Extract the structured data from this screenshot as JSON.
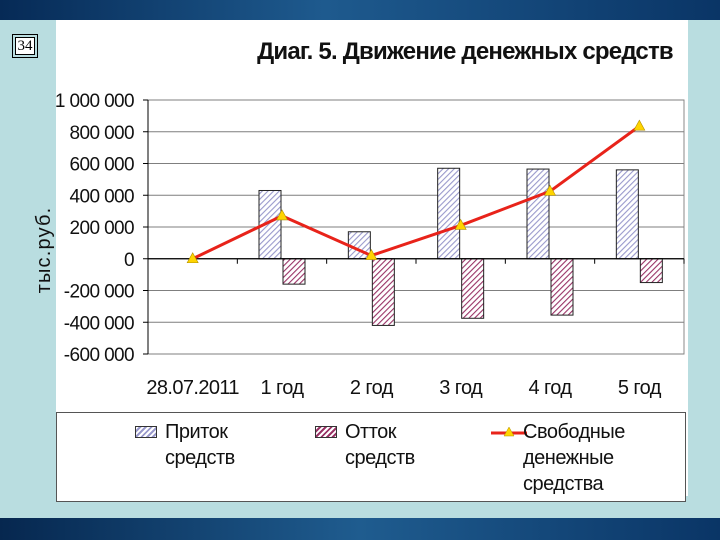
{
  "slide_number": "34",
  "chart_data": {
    "type": "bar",
    "title": "Диаг. 5. Движение денежных средств",
    "ylabel": "тыс.руб.",
    "xlabel": "",
    "categories": [
      "28.07.2011",
      "1 год",
      "2 год",
      "3 год",
      "4 год",
      "5 год"
    ],
    "ylim": [
      -600000,
      1000000
    ],
    "yticks": [
      1000000,
      800000,
      600000,
      400000,
      200000,
      0,
      -200000,
      -400000,
      -600000
    ],
    "ytick_labels": [
      "1 000 000",
      "800 000",
      "600 000",
      "400 000",
      "200 000",
      "0",
      "-200 000",
      "-400 000",
      "-600 000"
    ],
    "grid": true,
    "legend_position": "bottom",
    "series": [
      {
        "name": "Приток средств",
        "kind": "bar",
        "color": "#9999cc",
        "values": [
          0,
          430000,
          170000,
          570000,
          565000,
          560000
        ]
      },
      {
        "name": "Отток средств",
        "kind": "bar",
        "color": "#993366",
        "values": [
          0,
          -160000,
          -420000,
          -375000,
          -355000,
          -150000
        ]
      },
      {
        "name": "Свободные денежные средства",
        "kind": "line",
        "color": "#e8231a",
        "marker_color": "#ffd400",
        "values": [
          0,
          270000,
          20000,
          210000,
          425000,
          835000
        ]
      }
    ]
  },
  "legend": {
    "inflow": "Приток\nсредств",
    "outflow": "Отток\nсредств",
    "free_cash": "Свободные\nденежные\nсредства"
  }
}
